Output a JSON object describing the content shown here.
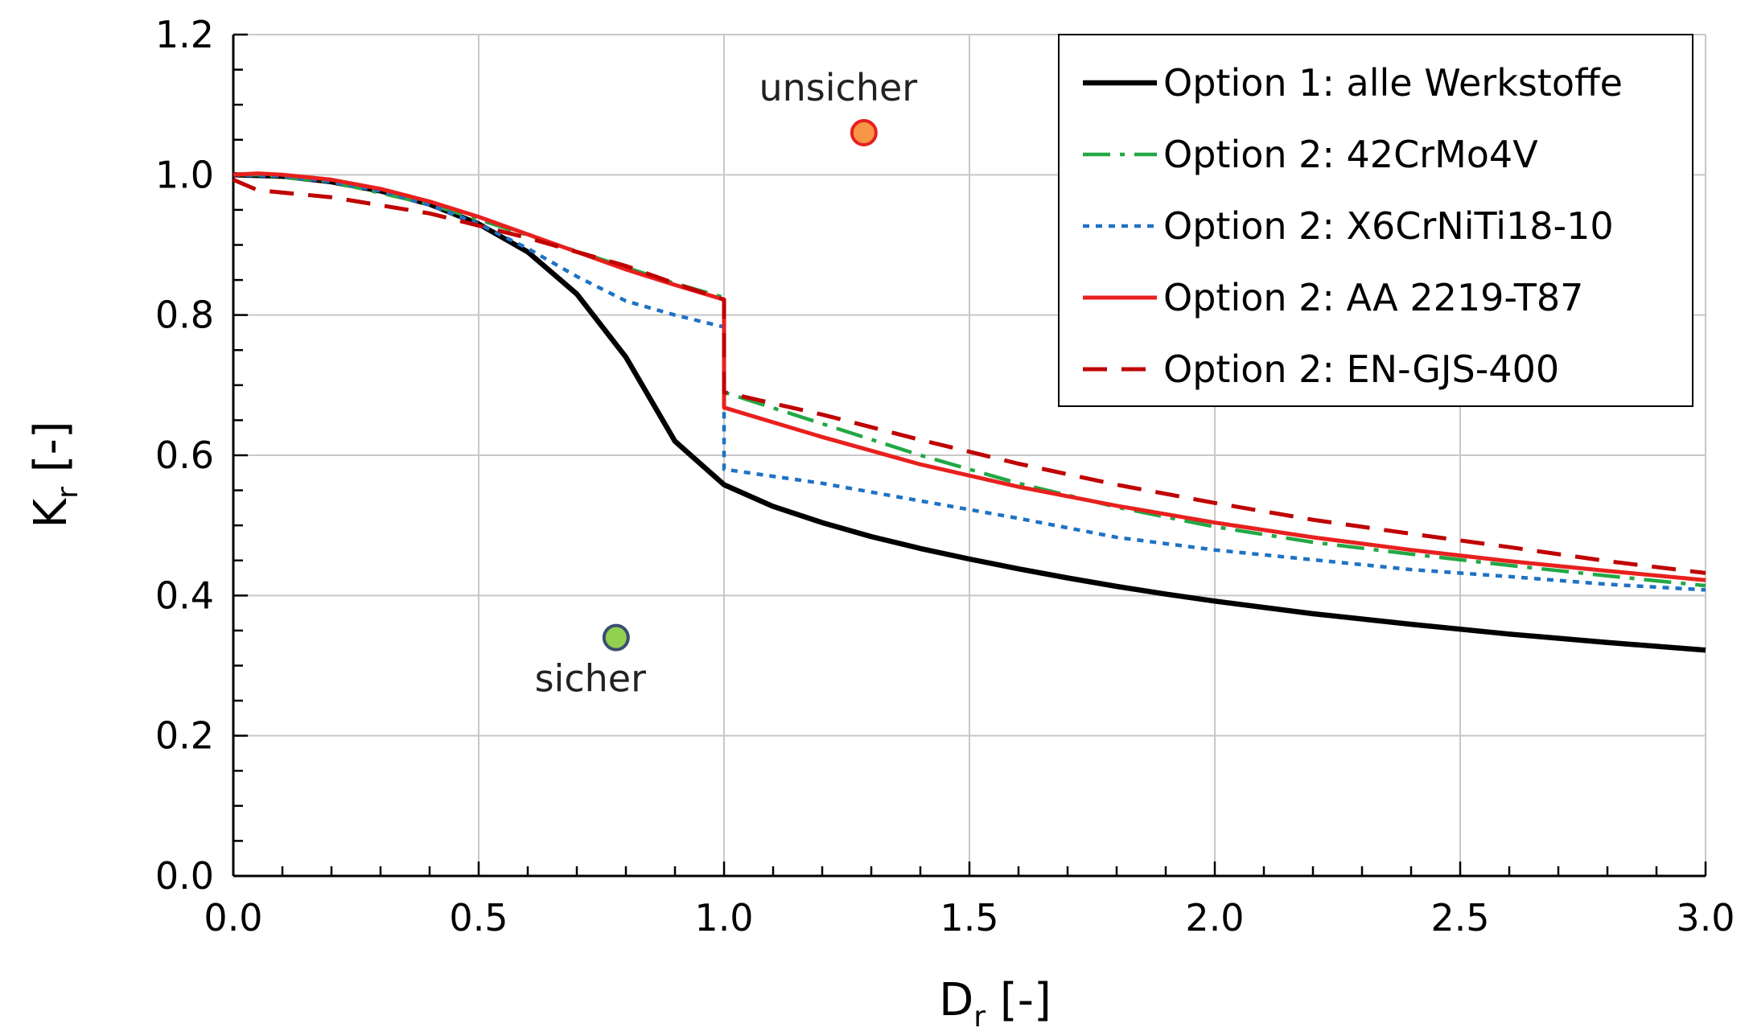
{
  "chart_data": {
    "type": "line",
    "xlabel": {
      "main": "D",
      "sub": "r",
      "unit": " [-]"
    },
    "ylabel": {
      "main": "K",
      "sub": "r",
      "unit": " [-]"
    },
    "xlim": [
      0,
      3
    ],
    "ylim": [
      0,
      1.2
    ],
    "xticks": [
      "0.0",
      "0.5",
      "1.0",
      "1.5",
      "2.0",
      "2.5",
      "3.0"
    ],
    "yticks": [
      "0.0",
      "0.2",
      "0.4",
      "0.6",
      "0.8",
      "1.0",
      "1.2"
    ],
    "grid": true,
    "legend_position": "top-right",
    "series": [
      {
        "name": "Option 1: alle Werkstoffe",
        "color": "#000000",
        "dash": "solid",
        "x": [
          0,
          0.1,
          0.2,
          0.3,
          0.4,
          0.5,
          0.6,
          0.7,
          0.8,
          0.9,
          1.0,
          1.1,
          1.2,
          1.3,
          1.4,
          1.5,
          1.6,
          1.7,
          1.8,
          1.9,
          2.0,
          2.2,
          2.4,
          2.6,
          2.8,
          3.0
        ],
        "y": [
          1.0,
          0.998,
          0.99,
          0.977,
          0.958,
          0.93,
          0.89,
          0.83,
          0.74,
          0.62,
          0.558,
          0.527,
          0.504,
          0.484,
          0.467,
          0.452,
          0.438,
          0.425,
          0.413,
          0.402,
          0.392,
          0.374,
          0.359,
          0.345,
          0.333,
          0.322
        ]
      },
      {
        "name": "Option 2: 42CrMo4V",
        "color": "#22a845",
        "dash": "dashdot",
        "x": [
          0,
          0.05,
          0.2,
          0.4,
          0.6,
          0.8,
          0.9,
          1.0,
          1.0,
          1.2,
          1.4,
          1.6,
          1.8,
          2.0,
          2.2,
          2.4,
          2.6,
          2.8,
          3.0
        ],
        "y": [
          1.0,
          1.0,
          0.99,
          0.958,
          0.914,
          0.868,
          0.845,
          0.825,
          0.69,
          0.645,
          0.6,
          0.56,
          0.526,
          0.498,
          0.476,
          0.459,
          0.443,
          0.428,
          0.414
        ]
      },
      {
        "name": "Option 2: X6CrNiTi18-10",
        "color": "#1f72c4",
        "dash": "dot",
        "x": [
          0,
          0.1,
          0.2,
          0.3,
          0.4,
          0.5,
          0.6,
          0.7,
          0.8,
          0.9,
          1.0,
          1.0,
          1.2,
          1.4,
          1.6,
          1.8,
          2.0,
          2.2,
          2.4,
          2.6,
          2.8,
          3.0
        ],
        "y": [
          1.0,
          0.998,
          0.99,
          0.977,
          0.957,
          0.93,
          0.895,
          0.855,
          0.82,
          0.8,
          0.783,
          0.58,
          0.56,
          0.535,
          0.51,
          0.483,
          0.465,
          0.451,
          0.437,
          0.427,
          0.416,
          0.408
        ]
      },
      {
        "name": "Option 2: AA 2219-T87",
        "color": "#e8201e",
        "dash": "solid",
        "x": [
          0,
          0.05,
          0.1,
          0.2,
          0.3,
          0.4,
          0.5,
          0.6,
          0.7,
          0.8,
          0.9,
          1.0,
          1.0,
          1.2,
          1.4,
          1.6,
          1.8,
          2.0,
          2.2,
          2.4,
          2.6,
          2.8,
          3.0
        ],
        "y": [
          1.0,
          1.002,
          1.0,
          0.993,
          0.98,
          0.962,
          0.94,
          0.915,
          0.89,
          0.865,
          0.843,
          0.822,
          0.668,
          0.626,
          0.587,
          0.555,
          0.528,
          0.504,
          0.483,
          0.465,
          0.449,
          0.435,
          0.422
        ]
      },
      {
        "name": "Option 2: EN-GJS-400",
        "color": "#c00000",
        "dash": "dash",
        "x": [
          0,
          0.05,
          0.2,
          0.4,
          0.6,
          0.8,
          0.9,
          1.0,
          1.0,
          1.2,
          1.4,
          1.6,
          1.8,
          2.0,
          2.2,
          2.4,
          2.6,
          2.8,
          3.0
        ],
        "y": [
          0.993,
          0.978,
          0.968,
          0.945,
          0.91,
          0.87,
          0.845,
          0.822,
          0.69,
          0.658,
          0.622,
          0.588,
          0.558,
          0.532,
          0.508,
          0.488,
          0.469,
          0.449,
          0.432
        ]
      }
    ],
    "points": [
      {
        "label": "unsicher",
        "x": 1.285,
        "y": 1.06,
        "fill": "#f79646",
        "stroke": "#e8201e",
        "label_side": "above"
      },
      {
        "label": "sicher",
        "x": 0.78,
        "y": 0.34,
        "fill": "#92d050",
        "stroke": "#3a4f6f",
        "label_side": "below"
      }
    ]
  }
}
